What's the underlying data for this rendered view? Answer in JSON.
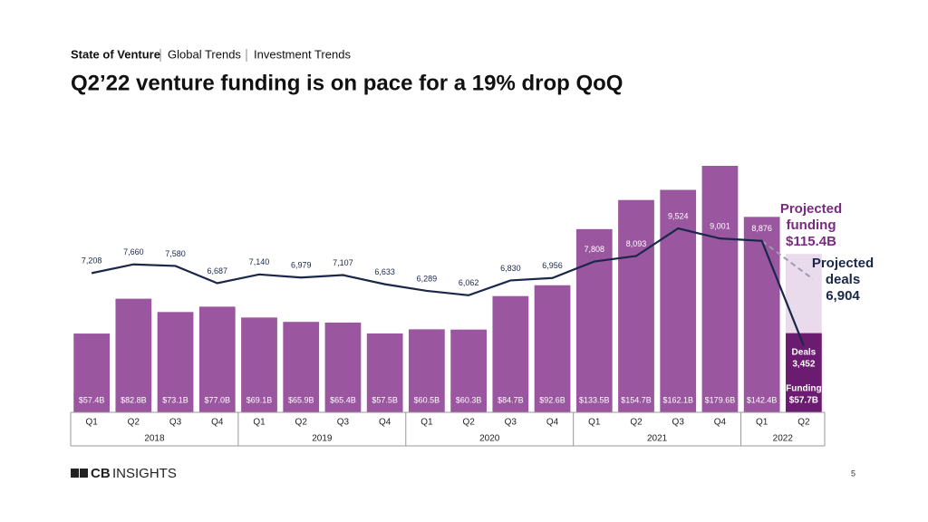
{
  "header": {
    "breadcrumb": [
      "State of Venture",
      "Global Trends",
      "Investment Trends"
    ]
  },
  "chart_data": {
    "type": "bar",
    "title": "Q2’22 venture funding is on pace for a 19% drop QoQ",
    "categories": [
      "Q1",
      "Q2",
      "Q3",
      "Q4",
      "Q1",
      "Q2",
      "Q3",
      "Q4",
      "Q1",
      "Q2",
      "Q3",
      "Q4",
      "Q1",
      "Q2",
      "Q3",
      "Q4",
      "Q1",
      "Q2"
    ],
    "groups": [
      {
        "label": "2018",
        "count": 4
      },
      {
        "label": "2019",
        "count": 4
      },
      {
        "label": "2020",
        "count": 4
      },
      {
        "label": "2021",
        "count": 4
      },
      {
        "label": "2022",
        "count": 2
      }
    ],
    "series": [
      {
        "name": "Funding",
        "type": "bar",
        "color": "#9b56a0",
        "highlight_color": "#6c1c70",
        "values": [
          57.4,
          82.8,
          73.1,
          77.0,
          69.1,
          65.9,
          65.4,
          57.5,
          60.5,
          60.3,
          84.7,
          92.6,
          133.5,
          154.7,
          162.1,
          179.6,
          142.4,
          57.7
        ],
        "value_labels": [
          "$57.4B",
          "$82.8B",
          "$73.1B",
          "$77.0B",
          "$69.1B",
          "$65.9B",
          "$65.4B",
          "$57.5B",
          "$60.5B",
          "$60.3B",
          "$84.7B",
          "$92.6B",
          "$133.5B",
          "$154.7B",
          "$162.1B",
          "$179.6B",
          "$142.4B",
          "$57.7B"
        ]
      },
      {
        "name": "Deals",
        "type": "line",
        "color": "#1a2749",
        "values": [
          7208,
          7660,
          7580,
          6687,
          7140,
          6979,
          7107,
          6633,
          6289,
          6062,
          6830,
          6956,
          7808,
          8093,
          9524,
          9001,
          8876,
          3452
        ],
        "value_labels": [
          "7,208",
          "7,660",
          "7,580",
          "6,687",
          "7,140",
          "6,979",
          "7,107",
          "6,633",
          "6,289",
          "6,062",
          "6,830",
          "6,956",
          "7,808",
          "8,093",
          "9,524",
          "9,001",
          "8,876",
          "3,452"
        ]
      }
    ],
    "projection": {
      "funding_label": [
        "Projected",
        "funding"
      ],
      "funding": 115.4,
      "funding_value_label": "$115.4B",
      "funding_color": "#e9dbec",
      "funding_text_color": "#7a2a80",
      "deals_label": [
        "Projected",
        "deals"
      ],
      "deals": 6904,
      "deals_value_label": "6,904",
      "deals_color": "#9a9db0"
    }
  },
  "footer": {
    "logo": [
      "CB",
      "INSIGHTS"
    ],
    "page": 5
  }
}
